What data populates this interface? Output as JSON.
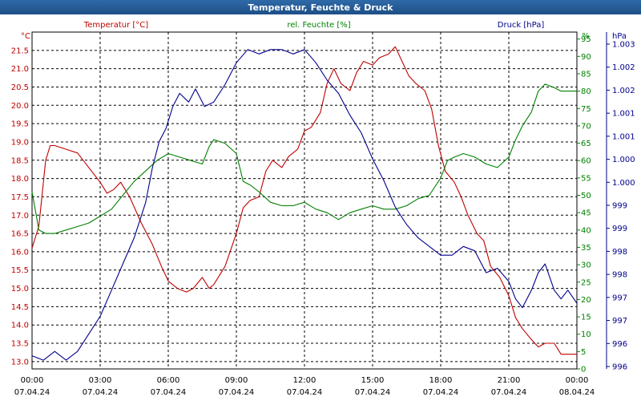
{
  "window": {
    "title": "Temperatur, Feuchte & Druck"
  },
  "chart_data": {
    "type": "line",
    "title": "Temperatur, Feuchte & Druck",
    "grid": true,
    "x_tick_times": [
      "00:00",
      "03:00",
      "06:00",
      "09:00",
      "12:00",
      "15:00",
      "18:00",
      "21:00",
      "00:00"
    ],
    "x_tick_dates": [
      "07.04.24",
      "07.04.24",
      "07.04.24",
      "07.04.24",
      "07.04.24",
      "07.04.24",
      "07.04.24",
      "07.04.24",
      "08.04.24"
    ],
    "xlim_hours": [
      0,
      24
    ],
    "axes": {
      "temperature": {
        "label": "Temperatur [°C]",
        "unit": "°C",
        "color": "#c00000",
        "ylim": [
          12.8,
          22.0
        ],
        "ticks": [
          "13.0",
          "13.5",
          "14.0",
          "14.5",
          "15.0",
          "15.5",
          "16.0",
          "16.5",
          "17.0",
          "17.5",
          "18.0",
          "18.5",
          "19.0",
          "19.5",
          "20.0",
          "20.5",
          "21.0",
          "21.5"
        ]
      },
      "humidity": {
        "label": "rel. Feuchte [%]",
        "unit": "%",
        "color": "#008000",
        "ylim": [
          0,
          97
        ],
        "ticks": [
          "0",
          "5",
          "10",
          "15",
          "20",
          "25",
          "30",
          "35",
          "40",
          "45",
          "50",
          "55",
          "60",
          "65",
          "70",
          "75",
          "80",
          "85",
          "90",
          "95"
        ]
      },
      "pressure": {
        "label": "Druck [hPa]",
        "unit": "hPa",
        "color": "#00008b",
        "ylim": [
          995.8,
          1003.5
        ],
        "ticks": [
          "996",
          "996",
          "997",
          "997",
          "998",
          "998",
          "999",
          "999",
          "1.000",
          "1.000",
          "1.001",
          "1.001",
          "1.002",
          "1.002",
          "1.003"
        ]
      }
    },
    "series": [
      {
        "name": "Temperatur [°C]",
        "axis": "temperature",
        "x": [
          0,
          0.3,
          0.6,
          0.8,
          1.0,
          1.5,
          2.0,
          2.5,
          3.0,
          3.3,
          3.6,
          3.9,
          4.3,
          4.8,
          5.3,
          5.7,
          6.0,
          6.4,
          6.8,
          7.1,
          7.5,
          7.8,
          8.0,
          8.2,
          8.5,
          9.0,
          9.3,
          9.6,
          10.0,
          10.3,
          10.6,
          11.0,
          11.3,
          11.7,
          12.0,
          12.3,
          12.7,
          13.0,
          13.3,
          13.6,
          14.0,
          14.3,
          14.6,
          15.0,
          15.3,
          15.7,
          16.0,
          16.3,
          16.6,
          16.9,
          17.3,
          17.6,
          17.9,
          18.2,
          18.6,
          18.9,
          19.2,
          19.6,
          19.9,
          20.2,
          20.6,
          21.0,
          21.3,
          21.6,
          22.0,
          22.3,
          22.6,
          23.0,
          23.3,
          23.6,
          24.0
        ],
        "values": [
          16.1,
          16.7,
          18.5,
          18.9,
          18.9,
          18.8,
          18.7,
          18.3,
          17.9,
          17.6,
          17.7,
          17.9,
          17.5,
          16.8,
          16.2,
          15.6,
          15.2,
          15.0,
          14.9,
          15.0,
          15.3,
          15.0,
          15.1,
          15.3,
          15.6,
          16.5,
          17.2,
          17.4,
          17.5,
          18.2,
          18.5,
          18.3,
          18.6,
          18.8,
          19.3,
          19.4,
          19.8,
          20.6,
          21.0,
          20.6,
          20.4,
          20.9,
          21.2,
          21.1,
          21.3,
          21.4,
          21.6,
          21.2,
          20.8,
          20.6,
          20.4,
          19.9,
          18.9,
          18.2,
          17.9,
          17.5,
          17.0,
          16.5,
          16.3,
          15.6,
          15.3,
          14.8,
          14.2,
          13.9,
          13.6,
          13.4,
          13.5,
          13.5,
          13.2,
          13.2,
          13.2
        ]
      },
      {
        "name": "rel. Feuchte [%]",
        "axis": "humidity",
        "x": [
          0,
          0.3,
          0.6,
          1.0,
          1.5,
          2.0,
          2.5,
          3.0,
          3.5,
          4.0,
          4.5,
          5.0,
          5.5,
          6.0,
          6.5,
          7.0,
          7.5,
          7.8,
          8.0,
          8.5,
          9.0,
          9.3,
          9.6,
          10.0,
          10.5,
          11.0,
          11.5,
          12.0,
          12.5,
          13.0,
          13.5,
          14.0,
          14.5,
          15.0,
          15.5,
          16.0,
          16.5,
          17.0,
          17.5,
          18.0,
          18.3,
          18.6,
          19.0,
          19.5,
          20.0,
          20.5,
          21.0,
          21.3,
          21.6,
          22.0,
          22.3,
          22.6,
          23.0,
          23.3,
          23.6,
          24.0
        ],
        "values": [
          51,
          40,
          39,
          39,
          40,
          41,
          42,
          44,
          46,
          50,
          54,
          57,
          60,
          62,
          61,
          60,
          59,
          64,
          66,
          65,
          62,
          54,
          53,
          51,
          48,
          47,
          47,
          48,
          46,
          45,
          43,
          45,
          46,
          47,
          46,
          46,
          47,
          49,
          50,
          55,
          60,
          61,
          62,
          61,
          59,
          58,
          61,
          66,
          70,
          74,
          80,
          82,
          81,
          80,
          80,
          80
        ]
      },
      {
        "name": "Druck [hPa]",
        "axis": "pressure",
        "x": [
          0,
          0.5,
          1.0,
          1.5,
          2.0,
          2.5,
          3.0,
          3.5,
          4.0,
          4.5,
          5.0,
          5.3,
          5.6,
          5.9,
          6.2,
          6.5,
          6.9,
          7.2,
          7.6,
          8.0,
          8.5,
          9.0,
          9.5,
          10.0,
          10.5,
          11.0,
          11.5,
          12.0,
          12.5,
          13.0,
          13.5,
          14.0,
          14.5,
          15.0,
          15.5,
          16.0,
          16.5,
          17.0,
          17.5,
          18.0,
          18.5,
          19.0,
          19.5,
          20.0,
          20.5,
          21.0,
          21.3,
          21.6,
          22.0,
          22.3,
          22.6,
          23.0,
          23.3,
          23.6,
          24.0
        ],
        "values": [
          996.1,
          996.0,
          996.2,
          996.0,
          996.2,
          996.6,
          997.0,
          997.6,
          998.2,
          998.8,
          999.6,
          1000.4,
          1001.0,
          1001.3,
          1001.8,
          1002.1,
          1001.9,
          1002.2,
          1001.8,
          1001.9,
          1002.3,
          1002.8,
          1003.1,
          1003.0,
          1003.1,
          1003.1,
          1003.0,
          1003.1,
          1002.8,
          1002.4,
          1002.1,
          1001.6,
          1001.2,
          1000.6,
          1000.1,
          999.5,
          999.1,
          998.8,
          998.6,
          998.4,
          998.4,
          998.6,
          998.5,
          998.0,
          998.1,
          997.8,
          997.4,
          997.2,
          997.6,
          998.0,
          998.2,
          997.6,
          997.4,
          997.6,
          997.3
        ]
      }
    ]
  }
}
